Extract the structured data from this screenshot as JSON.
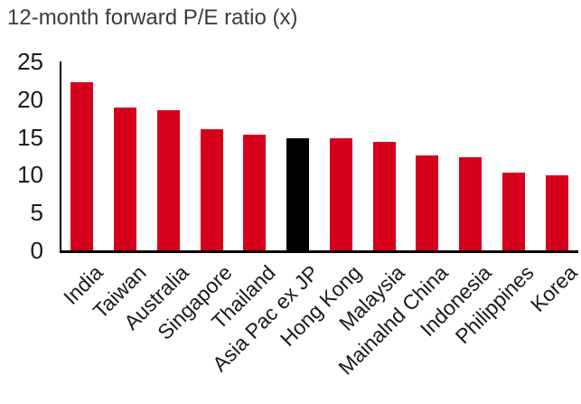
{
  "header": {
    "title": "12-month forward P/E ratio (x)"
  },
  "chart_data": {
    "type": "bar",
    "title": "12-month forward P/E ratio (x)",
    "categories": [
      "India",
      "Taiwan",
      "Australia",
      "Singapore",
      "Thailand",
      "Asia Pac ex JP",
      "Hong Kong",
      "Malaysia",
      "Mainalnd China",
      "Indonesia",
      "Philippines",
      "Korea"
    ],
    "values": [
      22.2,
      18.9,
      18.6,
      16.0,
      15.3,
      14.8,
      14.8,
      14.4,
      12.6,
      12.3,
      10.3,
      9.9
    ],
    "highlight_index": 5,
    "highlight_category": "Asia Pac ex JP",
    "xlabel": "",
    "ylabel": "",
    "ylim": [
      0,
      25
    ],
    "yticks": [
      0,
      5,
      10,
      15,
      20,
      25
    ],
    "x_tick_rotation_deg": 45,
    "grid": false,
    "legend": null,
    "colors": {
      "bar": "#d6001c",
      "highlight_bar": "#000000",
      "axis": "#000000",
      "title_text": "#3c3c3c",
      "tick_text": "#1a1a1a",
      "background": "#ffffff"
    }
  }
}
